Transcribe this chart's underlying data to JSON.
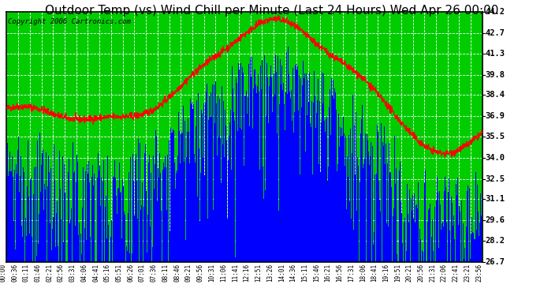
{
  "title": "Outdoor Temp (vs) Wind Chill per Minute (Last 24 Hours) Wed Apr 26 00:00",
  "copyright": "Copyright 2006 Cartronics.com",
  "plot_bg_color": "#00CC00",
  "outer_bg_color": "#FFFFFF",
  "yticks": [
    26.7,
    28.2,
    29.6,
    31.1,
    32.5,
    34.0,
    35.5,
    36.9,
    38.4,
    39.8,
    41.3,
    42.7,
    44.2
  ],
  "ymin": 26.7,
  "ymax": 44.2,
  "xtick_labels": [
    "00:00",
    "00:36",
    "01:11",
    "01:46",
    "02:21",
    "02:56",
    "03:31",
    "04:06",
    "04:41",
    "05:16",
    "05:51",
    "06:26",
    "07:01",
    "07:36",
    "08:11",
    "08:46",
    "09:21",
    "09:56",
    "10:31",
    "11:06",
    "11:41",
    "12:16",
    "12:51",
    "13:26",
    "14:01",
    "14:36",
    "15:11",
    "15:46",
    "16:21",
    "16:56",
    "17:31",
    "18:06",
    "18:41",
    "19:16",
    "19:51",
    "20:21",
    "20:56",
    "21:31",
    "22:06",
    "22:41",
    "23:21",
    "23:56"
  ],
  "bar_color": "#0000FF",
  "line_color": "#FF0000",
  "grid_color": "#FFFFFF",
  "title_fontsize": 11,
  "copyright_fontsize": 6.5
}
